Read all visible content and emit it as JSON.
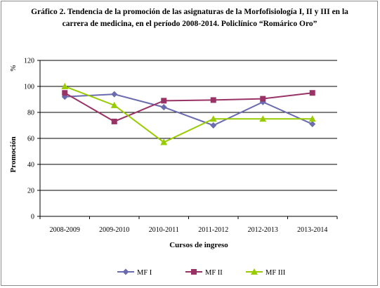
{
  "chart_data": {
    "type": "line",
    "title_lines": [
      "Gráfico 2. Tendencia de la promoción de las asignaturas de la Morfofisiología I, II y III en la",
      "carrera de medicina, en el período  2008-2014. Policlínico “Romárico Oro”"
    ],
    "categories": [
      "2008-2009",
      "2009-2010",
      "2010-2011",
      "2011-2012",
      "2012-2013",
      "2013-2014"
    ],
    "series": [
      {
        "name": "MF I",
        "color": "#6b6bb0",
        "marker": "diamond",
        "values": [
          92,
          94,
          84,
          70,
          88,
          71
        ]
      },
      {
        "name": "MF II",
        "color": "#993366",
        "marker": "square",
        "values": [
          95,
          73,
          89,
          89.5,
          90.5,
          95
        ]
      },
      {
        "name": "MF III",
        "color": "#99cc00",
        "marker": "triangle",
        "values": [
          100,
          85.5,
          57,
          75,
          75,
          75
        ]
      }
    ],
    "ylabel": "Promoción",
    "yunit": "%",
    "xlabel": "Cursos de ingreso",
    "ylim": [
      0,
      120
    ],
    "yticks": [
      0,
      20,
      40,
      60,
      80,
      100,
      120
    ],
    "grid": true,
    "legend_position": "bottom"
  }
}
